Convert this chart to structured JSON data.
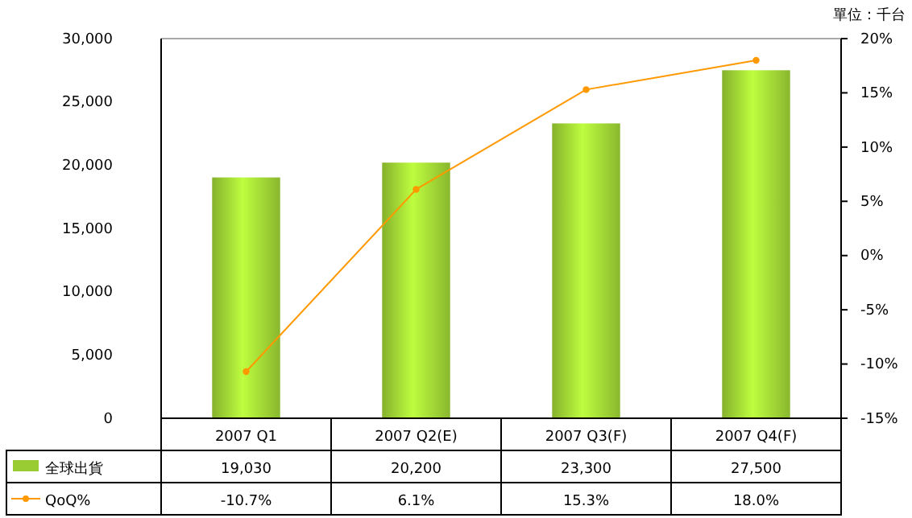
{
  "chart_data": {
    "type": "bar",
    "annotations": [
      "單位：千台"
    ],
    "categories": [
      "2007 Q1",
      "2007 Q2(E)",
      "2007 Q3(F)",
      "2007 Q4(F)"
    ],
    "series": [
      {
        "name": "全球出貨",
        "color": "#99cc33",
        "values": [
          19030,
          20200,
          23300,
          27500
        ],
        "value_labels": [
          "19,030",
          "20,200",
          "23,300",
          "27,500"
        ]
      },
      {
        "name": "QoQ%",
        "type": "line",
        "axis": "y2",
        "color": "#ff9900",
        "values": [
          -10.7,
          6.1,
          15.3,
          18.0
        ],
        "value_labels": [
          "-10.7%",
          "6.1%",
          "15.3%",
          "18.0%"
        ]
      }
    ],
    "ylim": [
      0,
      30000
    ],
    "yticks": [
      {
        "value": 0,
        "label": "0"
      },
      {
        "value": 5000,
        "label": "5,000"
      },
      {
        "value": 10000,
        "label": "10,000"
      },
      {
        "value": 15000,
        "label": "15,000"
      },
      {
        "value": 20000,
        "label": "20,000"
      },
      {
        "value": 25000,
        "label": "25,000"
      },
      {
        "value": 30000,
        "label": "30,000"
      }
    ],
    "y2lim": [
      -15,
      20
    ],
    "y2ticks": [
      {
        "value": -15,
        "label": "-15%"
      },
      {
        "value": -10,
        "label": "-10%"
      },
      {
        "value": -5,
        "label": "-5%"
      },
      {
        "value": 0,
        "label": "0%"
      },
      {
        "value": 5,
        "label": "5%"
      },
      {
        "value": 10,
        "label": "10%"
      },
      {
        "value": 15,
        "label": "15%"
      },
      {
        "value": 20,
        "label": "20%"
      }
    ],
    "marker": "circle",
    "legend": "bottom"
  }
}
